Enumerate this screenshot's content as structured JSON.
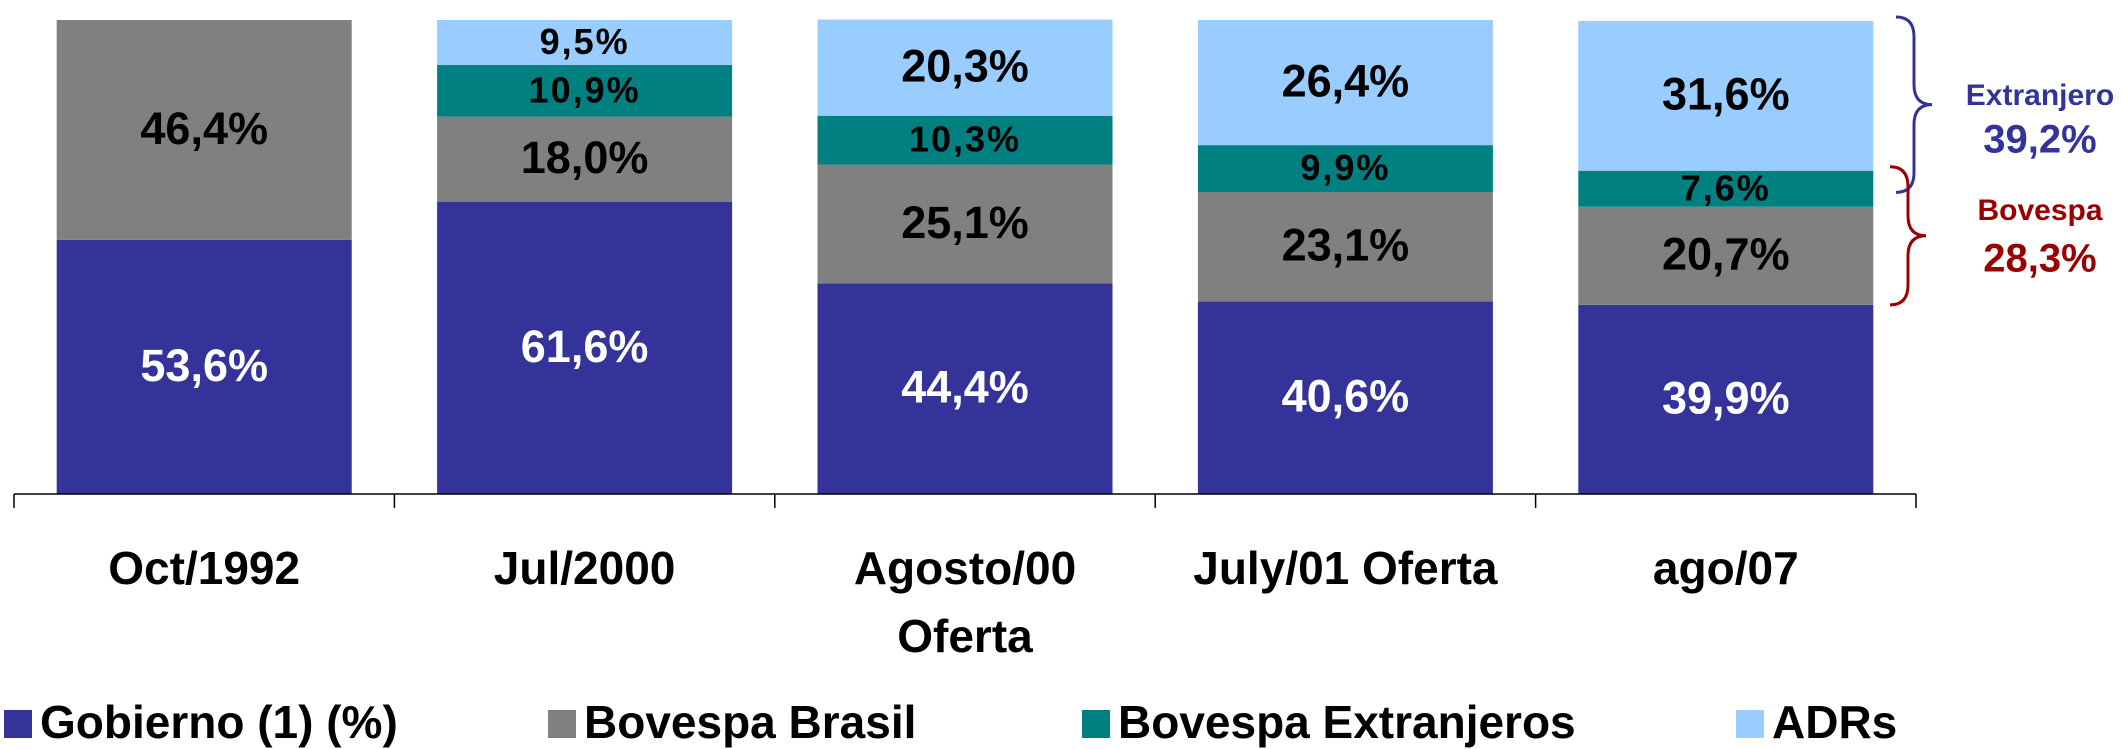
{
  "chart_data": {
    "type": "stacked_bar",
    "categories": [
      "Oct/1992",
      "Jul/2000",
      "Agosto/00 Oferta",
      "July/01 Oferta",
      "ago/07"
    ],
    "series": [
      {
        "name": "Gobierno (1) (%)",
        "color": "#333399",
        "values": [
          53.6,
          61.6,
          44.4,
          40.6,
          39.9
        ],
        "value_labels": [
          "53,6%",
          "61,6%",
          "44,4%",
          "40,6%",
          "39,9%"
        ]
      },
      {
        "name": "Bovespa Brasil",
        "color": "#808080",
        "values": [
          46.4,
          18.0,
          25.1,
          23.1,
          20.7
        ],
        "value_labels": [
          "46,4%",
          "18,0%",
          "25,1%",
          "23,1%",
          "20,7%"
        ]
      },
      {
        "name": "Bovespa Extranjeros",
        "color": "#008080",
        "values": [
          null,
          10.9,
          10.3,
          9.9,
          7.6
        ],
        "value_labels": [
          null,
          "10,9%",
          "10,3%",
          "9,9%",
          "7,6%"
        ]
      },
      {
        "name": "ADRs",
        "color": "#99ccff",
        "values": [
          null,
          9.5,
          20.3,
          26.4,
          31.6
        ],
        "value_labels": [
          null,
          "9,5%",
          "20,3%",
          "26,4%",
          "31,6%"
        ]
      }
    ],
    "ylim": [
      0,
      100
    ],
    "annotations": [
      {
        "text": "Extranjero",
        "value": 39.2,
        "value_label": "39,2%",
        "color": "#333399"
      },
      {
        "text": "Bovespa",
        "value": 28.3,
        "value_label": "28,3%",
        "color": "#990000"
      }
    ]
  }
}
